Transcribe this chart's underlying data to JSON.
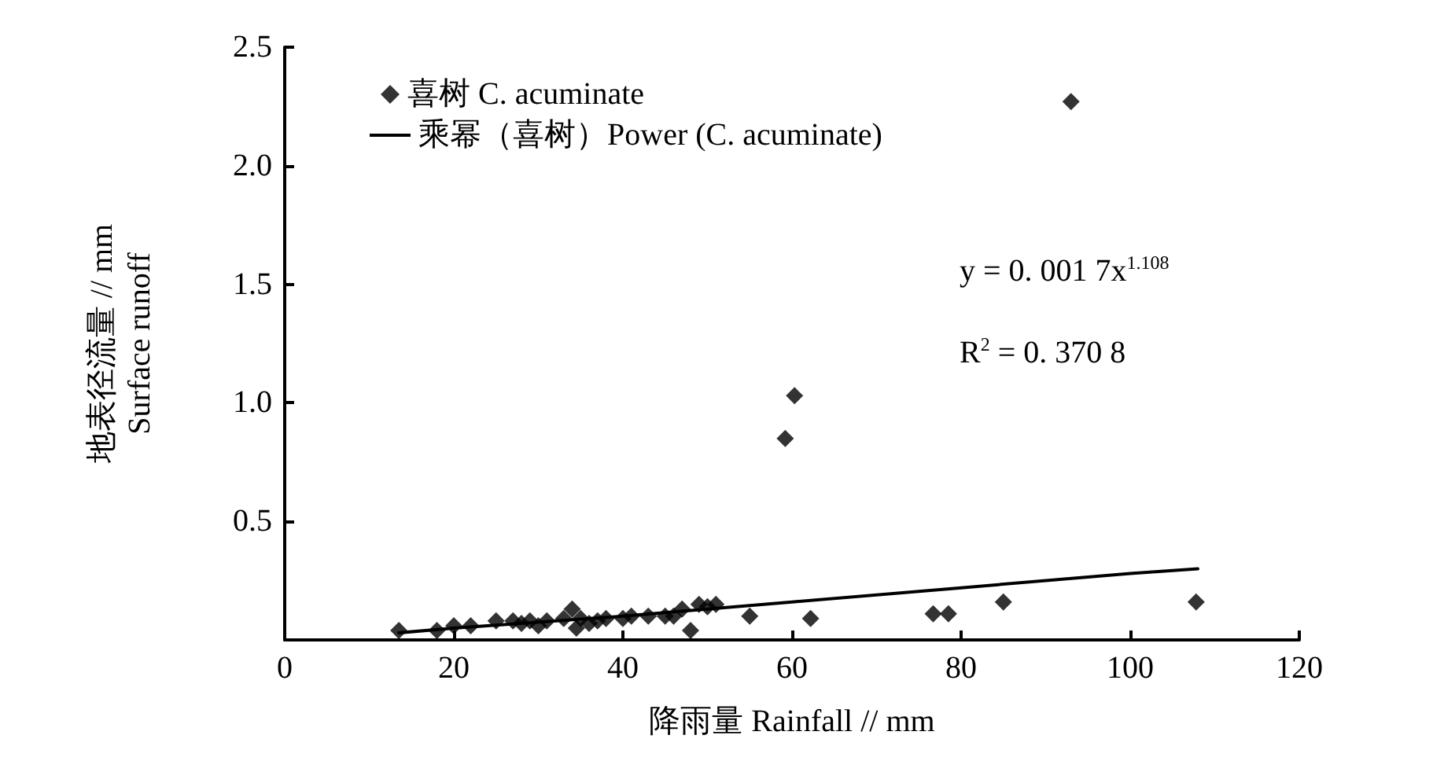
{
  "chart_data": {
    "type": "scatter",
    "xlabel": "降雨量 Rainfall // mm",
    "ylabel": "地表径流量 // mm\nSurface runoff",
    "xlim": [
      0,
      120
    ],
    "xticks": [
      0,
      20,
      40,
      60,
      80,
      100,
      120
    ],
    "ylim": [
      0,
      2.5
    ],
    "yticks": [
      {
        "value": 0.5,
        "label": "0.5"
      },
      {
        "value": 1.0,
        "label": "1.0"
      },
      {
        "value": 1.5,
        "label": "1.5"
      },
      {
        "value": 2.0,
        "label": "2.0"
      },
      {
        "value": 2.5,
        "label": "2.5"
      }
    ],
    "legend": "top left",
    "grid": false,
    "annotations": [
      "y = 0. 001 7x$^{1.108}$",
      "R$^{2}$ = 0. 370 8"
    ],
    "series": [
      {
        "name": "喜树 C. acuminate",
        "color": "#000000",
        "marker": "diamond",
        "x": [
          13.5,
          18,
          20,
          22,
          25,
          27,
          28,
          29,
          30,
          31,
          33,
          34,
          34.5,
          35,
          36,
          37,
          38,
          40,
          41,
          43,
          45,
          46,
          47,
          48,
          49,
          50,
          51,
          55,
          59.2,
          60.3,
          62.2,
          76.7,
          78.5,
          85,
          93,
          107.8
        ],
        "values": [
          0.04,
          0.04,
          0.06,
          0.06,
          0.08,
          0.08,
          0.07,
          0.08,
          0.06,
          0.08,
          0.09,
          0.13,
          0.05,
          0.09,
          0.07,
          0.08,
          0.09,
          0.09,
          0.1,
          0.1,
          0.1,
          0.1,
          0.13,
          0.04,
          0.15,
          0.14,
          0.15,
          0.1,
          0.85,
          1.03,
          0.09,
          0.11,
          0.11,
          0.16,
          2.27,
          0.16
        ]
      },
      {
        "name": "乘幂（喜树）Power (C. acuminate)",
        "type": "line",
        "color": "#000000",
        "marker": "none",
        "line_style": "solid",
        "x": [
          13.5,
          20,
          40,
          60,
          80,
          100,
          108
        ],
        "values": [
          0.03,
          0.05,
          0.1,
          0.16,
          0.22,
          0.28,
          0.3
        ]
      }
    ]
  }
}
